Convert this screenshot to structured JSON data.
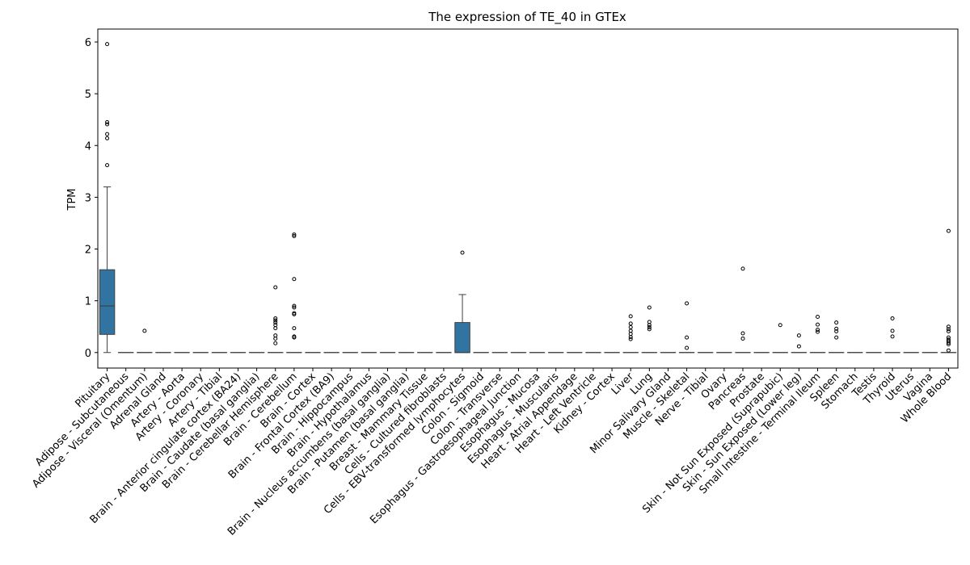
{
  "chart_data": {
    "type": "box",
    "title": "The expression of TE_40 in GTEx",
    "xlabel": "",
    "ylabel": "TPM",
    "ylim": [
      -0.3,
      6.25
    ],
    "yticks": [
      0,
      1,
      2,
      3,
      4,
      5,
      6
    ],
    "box_color": "#3274a1",
    "categories": [
      "Pituitary",
      "Adipose - Subcutaneous",
      "Adipose - Visceral (Omentum)",
      "Adrenal Gland",
      "Artery - Aorta",
      "Artery - Coronary",
      "Artery - Tibial",
      "Brain - Anterior cingulate cortex (BA24)",
      "Brain - Caudate (basal ganglia)",
      "Brain - Cerebellar Hemisphere",
      "Brain - Cerebellum",
      "Brain - Cortex",
      "Brain - Frontal Cortex (BA9)",
      "Brain - Hippocampus",
      "Brain - Hypothalamus",
      "Brain - Nucleus accumbens (basal ganglia)",
      "Brain - Putamen (basal ganglia)",
      "Breast - Mammary Tissue",
      "Cells - Cultured fibroblasts",
      "Cells - EBV-transformed lymphocytes",
      "Colon - Sigmoid",
      "Colon - Transverse",
      "Esophagus - Gastroesophageal Junction",
      "Esophagus - Mucosa",
      "Esophagus - Muscularis",
      "Heart - Atrial Appendage",
      "Heart - Left Ventricle",
      "Kidney - Cortex",
      "Liver",
      "Lung",
      "Minor Salivary Gland",
      "Muscle - Skeletal",
      "Nerve - Tibial",
      "Ovary",
      "Pancreas",
      "Prostate",
      "Skin - Not Sun Exposed (Suprapubic)",
      "Skin - Sun Exposed (Lower leg)",
      "Small Intestine - Terminal Ileum",
      "Spleen",
      "Stomach",
      "Testis",
      "Thyroid",
      "Uterus",
      "Vagina",
      "Whole Blood"
    ],
    "boxes": [
      {
        "q1": 0.35,
        "median": 0.9,
        "q3": 1.6,
        "whislo": 0,
        "whishi": 3.2,
        "fliers": [
          3.62,
          4.14,
          4.22,
          4.41,
          4.45,
          5.96
        ]
      },
      {
        "q1": 0,
        "median": 0,
        "q3": 0,
        "whislo": 0,
        "whishi": 0,
        "fliers": []
      },
      {
        "q1": 0,
        "median": 0,
        "q3": 0,
        "whislo": 0,
        "whishi": 0,
        "fliers": [
          0.42
        ]
      },
      {
        "q1": 0,
        "median": 0,
        "q3": 0,
        "whislo": 0,
        "whishi": 0,
        "fliers": []
      },
      {
        "q1": 0,
        "median": 0,
        "q3": 0,
        "whislo": 0,
        "whishi": 0,
        "fliers": []
      },
      {
        "q1": 0,
        "median": 0,
        "q3": 0,
        "whislo": 0,
        "whishi": 0,
        "fliers": []
      },
      {
        "q1": 0,
        "median": 0,
        "q3": 0,
        "whislo": 0,
        "whishi": 0,
        "fliers": []
      },
      {
        "q1": 0,
        "median": 0,
        "q3": 0,
        "whislo": 0,
        "whishi": 0,
        "fliers": []
      },
      {
        "q1": 0,
        "median": 0,
        "q3": 0,
        "whislo": 0,
        "whishi": 0,
        "fliers": []
      },
      {
        "q1": 0,
        "median": 0,
        "q3": 0,
        "whislo": 0,
        "whishi": 0,
        "fliers": [
          0.18,
          0.27,
          0.33,
          0.47,
          0.53,
          0.58,
          0.62,
          0.66,
          1.26
        ]
      },
      {
        "q1": 0,
        "median": 0,
        "q3": 0,
        "whislo": 0,
        "whishi": 0,
        "fliers": [
          0.29,
          0.31,
          0.47,
          0.74,
          0.76,
          0.87,
          0.9,
          1.42,
          2.25,
          2.28
        ]
      },
      {
        "q1": 0,
        "median": 0,
        "q3": 0,
        "whislo": 0,
        "whishi": 0,
        "fliers": []
      },
      {
        "q1": 0,
        "median": 0,
        "q3": 0,
        "whislo": 0,
        "whishi": 0,
        "fliers": []
      },
      {
        "q1": 0,
        "median": 0,
        "q3": 0,
        "whislo": 0,
        "whishi": 0,
        "fliers": []
      },
      {
        "q1": 0,
        "median": 0,
        "q3": 0,
        "whislo": 0,
        "whishi": 0,
        "fliers": []
      },
      {
        "q1": 0,
        "median": 0,
        "q3": 0,
        "whislo": 0,
        "whishi": 0,
        "fliers": []
      },
      {
        "q1": 0,
        "median": 0,
        "q3": 0,
        "whislo": 0,
        "whishi": 0,
        "fliers": []
      },
      {
        "q1": 0,
        "median": 0,
        "q3": 0,
        "whislo": 0,
        "whishi": 0,
        "fliers": []
      },
      {
        "q1": 0,
        "median": 0,
        "q3": 0,
        "whislo": 0,
        "whishi": 0,
        "fliers": []
      },
      {
        "q1": 0,
        "median": 0,
        "q3": 0.58,
        "whislo": 0,
        "whishi": 1.12,
        "fliers": [
          1.93
        ]
      },
      {
        "q1": 0,
        "median": 0,
        "q3": 0,
        "whislo": 0,
        "whishi": 0,
        "fliers": []
      },
      {
        "q1": 0,
        "median": 0,
        "q3": 0,
        "whislo": 0,
        "whishi": 0,
        "fliers": []
      },
      {
        "q1": 0,
        "median": 0,
        "q3": 0,
        "whislo": 0,
        "whishi": 0,
        "fliers": []
      },
      {
        "q1": 0,
        "median": 0,
        "q3": 0,
        "whislo": 0,
        "whishi": 0,
        "fliers": []
      },
      {
        "q1": 0,
        "median": 0,
        "q3": 0,
        "whislo": 0,
        "whishi": 0,
        "fliers": []
      },
      {
        "q1": 0,
        "median": 0,
        "q3": 0,
        "whislo": 0,
        "whishi": 0,
        "fliers": []
      },
      {
        "q1": 0,
        "median": 0,
        "q3": 0,
        "whislo": 0,
        "whishi": 0,
        "fliers": []
      },
      {
        "q1": 0,
        "median": 0,
        "q3": 0,
        "whislo": 0,
        "whishi": 0,
        "fliers": []
      },
      {
        "q1": 0,
        "median": 0,
        "q3": 0,
        "whislo": 0,
        "whishi": 0,
        "fliers": [
          0.26,
          0.3,
          0.36,
          0.42,
          0.49,
          0.56,
          0.7
        ]
      },
      {
        "q1": 0,
        "median": 0,
        "q3": 0,
        "whislo": 0,
        "whishi": 0,
        "fliers": [
          0.45,
          0.49,
          0.53,
          0.59,
          0.87
        ]
      },
      {
        "q1": 0,
        "median": 0,
        "q3": 0,
        "whislo": 0,
        "whishi": 0,
        "fliers": []
      },
      {
        "q1": 0,
        "median": 0,
        "q3": 0,
        "whislo": 0,
        "whishi": 0,
        "fliers": [
          0.09,
          0.29,
          0.95
        ]
      },
      {
        "q1": 0,
        "median": 0,
        "q3": 0,
        "whislo": 0,
        "whishi": 0,
        "fliers": []
      },
      {
        "q1": 0,
        "median": 0,
        "q3": 0,
        "whislo": 0,
        "whishi": 0,
        "fliers": []
      },
      {
        "q1": 0,
        "median": 0,
        "q3": 0,
        "whislo": 0,
        "whishi": 0,
        "fliers": [
          0.27,
          0.37,
          1.62
        ]
      },
      {
        "q1": 0,
        "median": 0,
        "q3": 0,
        "whislo": 0,
        "whishi": 0,
        "fliers": []
      },
      {
        "q1": 0,
        "median": 0,
        "q3": 0,
        "whislo": 0,
        "whishi": 0,
        "fliers": [
          0.53
        ]
      },
      {
        "q1": 0,
        "median": 0,
        "q3": 0,
        "whislo": 0,
        "whishi": 0,
        "fliers": [
          0.12,
          0.33
        ]
      },
      {
        "q1": 0,
        "median": 0,
        "q3": 0,
        "whislo": 0,
        "whishi": 0,
        "fliers": [
          0.4,
          0.44,
          0.54,
          0.69
        ]
      },
      {
        "q1": 0,
        "median": 0,
        "q3": 0,
        "whislo": 0,
        "whishi": 0,
        "fliers": [
          0.29,
          0.41,
          0.46,
          0.58
        ]
      },
      {
        "q1": 0,
        "median": 0,
        "q3": 0,
        "whislo": 0,
        "whishi": 0,
        "fliers": []
      },
      {
        "q1": 0,
        "median": 0,
        "q3": 0,
        "whislo": 0,
        "whishi": 0,
        "fliers": []
      },
      {
        "q1": 0,
        "median": 0,
        "q3": 0,
        "whislo": 0,
        "whishi": 0,
        "fliers": [
          0.31,
          0.42,
          0.66
        ]
      },
      {
        "q1": 0,
        "median": 0,
        "q3": 0,
        "whislo": 0,
        "whishi": 0,
        "fliers": []
      },
      {
        "q1": 0,
        "median": 0,
        "q3": 0,
        "whislo": 0,
        "whishi": 0,
        "fliers": []
      },
      {
        "q1": 0,
        "median": 0,
        "q3": 0,
        "whislo": 0,
        "whishi": 0,
        "fliers": [
          0.04,
          0.16,
          0.19,
          0.22,
          0.25,
          0.29,
          0.41,
          0.45,
          0.5,
          2.35
        ]
      }
    ]
  }
}
